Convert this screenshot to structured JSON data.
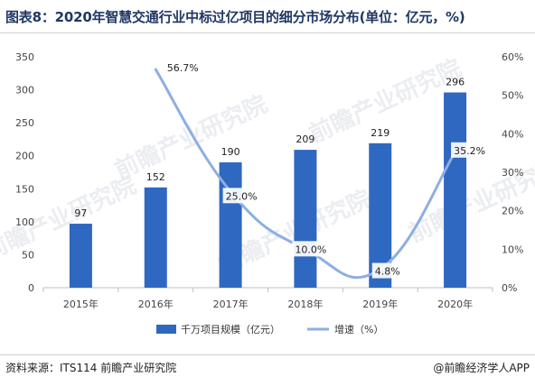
{
  "title": "图表8：2020年智慧交通行业中标过亿项目的细分市场分布(单位：亿元，%)",
  "source": "资料来源：ITS114 前瞻产业研究院",
  "credit": "@前瞻经济学人APP",
  "watermark": "前瞻产业研究院",
  "colors": {
    "bar": "#2e68c0",
    "line": "#8eaee2",
    "title": "#1f3864"
  },
  "chart_data": {
    "type": "bar",
    "categories": [
      "2015年",
      "2016年",
      "2017年",
      "2018年",
      "2019年",
      "2020年"
    ],
    "series": [
      {
        "name": "千万项目规模（亿元）",
        "type": "bar",
        "axis": "left",
        "values": [
          97,
          152,
          190,
          209,
          219,
          296
        ],
        "labels": [
          "97",
          "152",
          "190",
          "209",
          "219",
          "296"
        ]
      },
      {
        "name": "增速（%）",
        "type": "line",
        "axis": "right",
        "values": [
          null,
          56.7,
          25.0,
          10.0,
          4.8,
          35.2
        ],
        "labels": [
          "",
          "56.7%",
          "25.0%",
          "10.0%",
          "4.8%",
          "35.2%"
        ]
      }
    ],
    "ylim_left": [
      0,
      350
    ],
    "yticks_left": [
      "0",
      "50",
      "100",
      "150",
      "200",
      "250",
      "300",
      "350"
    ],
    "ylim_right": [
      0,
      60
    ],
    "yticks_right": [
      "0%",
      "10%",
      "20%",
      "30%",
      "40%",
      "50%",
      "60%"
    ],
    "legend": "bottom",
    "grid": false
  }
}
